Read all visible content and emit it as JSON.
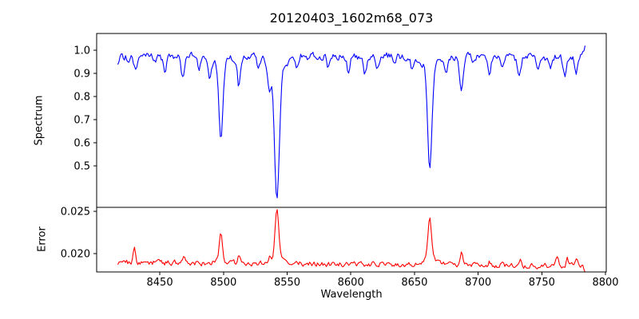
{
  "figure": {
    "title": "20120403_1602m68_073",
    "background": "#ffffff"
  },
  "chart_data": {
    "type": "line",
    "title": "20120403_1602m68_073",
    "xlabel": "Wavelength",
    "legend": "none",
    "grid": false,
    "x": {
      "lim": [
        8400.4,
        8800.6
      ],
      "ticks": [
        8450,
        8500,
        8550,
        8600,
        8650,
        8700,
        8750,
        8800
      ],
      "tick_labels": [
        "8450",
        "8500",
        "8550",
        "8600",
        "8650",
        "8700",
        "8750",
        "8800"
      ],
      "data_range": [
        8417,
        8784
      ]
    },
    "subplots": [
      {
        "name": "spectrum",
        "ylabel": "Spectrum",
        "color": "#0000ff",
        "ylim": [
          0.321,
          1.072
        ],
        "ytick_values": [
          1.0,
          0.9,
          0.8,
          0.7,
          0.6,
          0.5
        ],
        "ytick_labels": [
          "1.0",
          "0.9",
          "0.8",
          "0.7",
          "0.6",
          "0.5"
        ],
        "continuum_level": 0.967,
        "continuum_mid_bump": 0.008,
        "end_rise_to": 1.02,
        "noise_amp": 0.03,
        "absorption_lines": [
          [
            8431,
            0.055,
            1.3
          ],
          [
            8454,
            0.065,
            1.1
          ],
          [
            8468,
            0.085,
            1.4
          ],
          [
            8481,
            0.05,
            0.9
          ],
          [
            8489,
            0.09,
            1.0
          ],
          [
            8498,
            0.32,
            1.5
          ],
          [
            8498,
            0.04,
            4.5
          ],
          [
            8512,
            0.125,
            1.1
          ],
          [
            8527,
            0.05,
            1.0
          ],
          [
            8536,
            0.095,
            1.2
          ],
          [
            8542,
            0.55,
            1.9
          ],
          [
            8542,
            0.065,
            6.0
          ],
          [
            8558,
            0.045,
            1.0
          ],
          [
            8582,
            0.055,
            1.1
          ],
          [
            8598,
            0.06,
            1.1
          ],
          [
            8611,
            0.075,
            1.3
          ],
          [
            8621,
            0.05,
            1.0
          ],
          [
            8634,
            0.045,
            1.0
          ],
          [
            8648,
            0.055,
            1.1
          ],
          [
            8662,
            0.44,
            1.7
          ],
          [
            8662,
            0.05,
            5.0
          ],
          [
            8675,
            0.065,
            1.1
          ],
          [
            8687,
            0.14,
            1.5
          ],
          [
            8696,
            0.045,
            1.0
          ],
          [
            8709,
            0.075,
            1.2
          ],
          [
            8719,
            0.055,
            1.0
          ],
          [
            8732,
            0.085,
            1.3
          ],
          [
            8747,
            0.055,
            1.0
          ],
          [
            8757,
            0.05,
            1.0
          ],
          [
            8768,
            0.075,
            1.2
          ],
          [
            8777,
            0.055,
            1.0
          ]
        ],
        "line_minima_readings": {
          "8498": 0.61,
          "8542": 0.355,
          "8662": 0.48,
          "8687": 0.83
        }
      },
      {
        "name": "error",
        "ylabel": "Error",
        "color": "#ff0000",
        "ylim": [
          0.01783,
          0.02547
        ],
        "ytick_values": [
          0.025,
          0.02
        ],
        "ytick_labels": [
          "0.025",
          "0.020"
        ],
        "baseline_start": 0.01895,
        "baseline_end": 0.01855,
        "end_drop_to": 0.0175,
        "noise_amp": 0.00055,
        "peaks": [
          [
            8430,
            0.0017,
            0.9
          ],
          [
            8469,
            0.0007,
            1.2
          ],
          [
            8498,
            0.0031,
            1.2
          ],
          [
            8498,
            0.0005,
            3.0
          ],
          [
            8512,
            0.001,
            0.9
          ],
          [
            8536,
            0.0006,
            1.0
          ],
          [
            8542,
            0.0055,
            1.4
          ],
          [
            8542,
            0.0009,
            4.0
          ],
          [
            8662,
            0.0046,
            1.3
          ],
          [
            8662,
            0.001,
            3.5
          ],
          [
            8687,
            0.0014,
            1.1
          ],
          [
            8709,
            0.0005,
            1.0
          ],
          [
            8733,
            0.0006,
            1.0
          ],
          [
            8762,
            0.0007,
            1.0
          ],
          [
            8770,
            0.0008,
            0.9
          ],
          [
            8777,
            0.0011,
            0.9
          ]
        ],
        "peak_maxima_readings": {
          "8498": 0.0225,
          "8542": 0.0253,
          "8662": 0.0243
        }
      }
    ]
  }
}
